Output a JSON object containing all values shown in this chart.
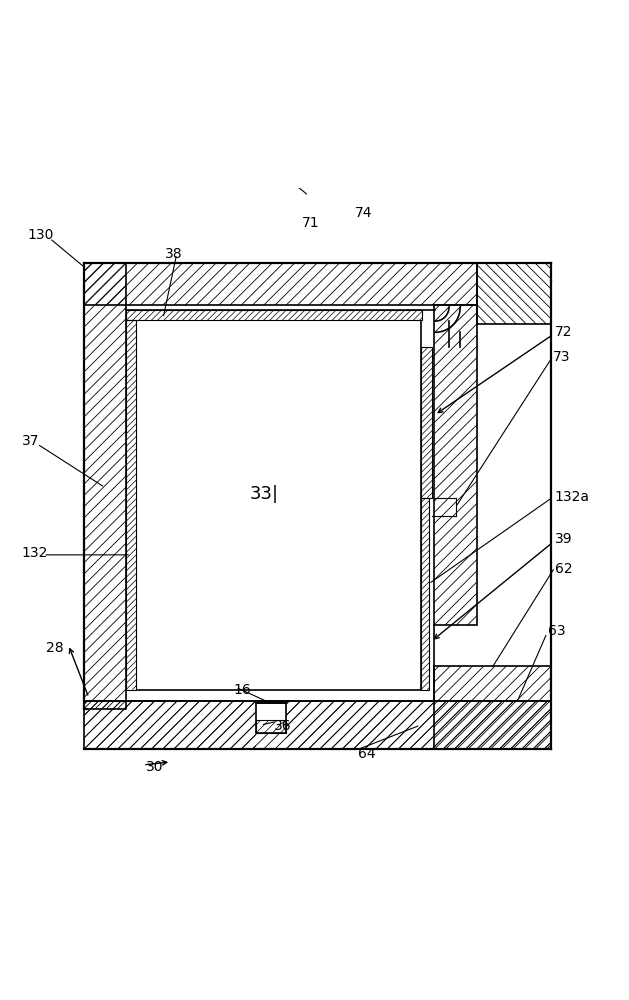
{
  "fig_width": 6.29,
  "fig_height": 10.0,
  "dpi": 100,
  "background": "#ffffff",
  "line_color": "#000000"
}
